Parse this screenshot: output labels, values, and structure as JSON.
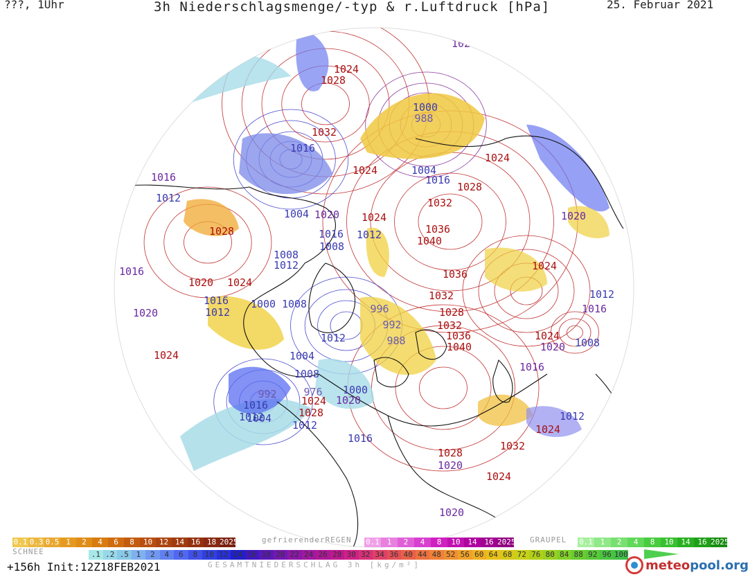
{
  "header": {
    "left": "???, 1Uhr",
    "title": "3h Niederschlagsmenge/-typ & r.Luftdruck [hPa]",
    "date": "25. Februar 2021"
  },
  "map": {
    "pressure_labels": [
      {
        "text": "1020",
        "color": "#3a3ab0"
      },
      {
        "text": "1024",
        "color": "#aa1010"
      },
      {
        "text": "1028",
        "color": "#aa1010"
      },
      {
        "text": "1020",
        "color": "#6a2aa0"
      },
      {
        "text": "1000",
        "color": "#3a3ab0"
      },
      {
        "text": "988",
        "color": "#6a5ab0"
      },
      {
        "text": "1032",
        "color": "#aa1010"
      },
      {
        "text": "1016",
        "color": "#3a3ab0"
      },
      {
        "text": "1024",
        "color": "#aa1010"
      },
      {
        "text": "1004",
        "color": "#3a3ab0"
      },
      {
        "text": "1016",
        "color": "#3a3ab0"
      },
      {
        "text": "1024",
        "color": "#aa1010"
      },
      {
        "text": "1028",
        "color": "#aa1010"
      },
      {
        "text": "1032",
        "color": "#aa1010"
      },
      {
        "text": "1016",
        "color": "#6a2aa0"
      },
      {
        "text": "1012",
        "color": "#3a3ab0"
      },
      {
        "text": "1028",
        "color": "#aa1010"
      },
      {
        "text": "1004",
        "color": "#3a3ab0"
      },
      {
        "text": "1020",
        "color": "#6a2aa0"
      },
      {
        "text": "1024",
        "color": "#aa1010"
      },
      {
        "text": "1020",
        "color": "#6a2aa0"
      },
      {
        "text": "1016",
        "color": "#3a3ab0"
      },
      {
        "text": "1012",
        "color": "#3a3ab0"
      },
      {
        "text": "1036",
        "color": "#aa1010"
      },
      {
        "text": "1008",
        "color": "#3a3ab0"
      },
      {
        "text": "1040",
        "color": "#aa1010"
      },
      {
        "text": "1008",
        "color": "#3a3ab0"
      },
      {
        "text": "1012",
        "color": "#3a3ab0"
      },
      {
        "text": "1016",
        "color": "#6a2aa0"
      },
      {
        "text": "1024",
        "color": "#aa1010"
      },
      {
        "text": "1020",
        "color": "#aa1010"
      },
      {
        "text": "1024",
        "color": "#aa1010"
      },
      {
        "text": "1036",
        "color": "#aa1010"
      },
      {
        "text": "1016",
        "color": "#3a3ab0"
      },
      {
        "text": "1000",
        "color": "#3a3ab0"
      },
      {
        "text": "1008",
        "color": "#3a3ab0"
      },
      {
        "text": "1012",
        "color": "#3a3ab0"
      },
      {
        "text": "1032",
        "color": "#aa1010"
      },
      {
        "text": "1012",
        "color": "#3a3ab0"
      },
      {
        "text": "996",
        "color": "#6a5ab0"
      },
      {
        "text": "1028",
        "color": "#aa1010"
      },
      {
        "text": "1020",
        "color": "#6a2aa0"
      },
      {
        "text": "1016",
        "color": "#6a2aa0"
      },
      {
        "text": "992",
        "color": "#6a5ab0"
      },
      {
        "text": "1032",
        "color": "#aa1010"
      },
      {
        "text": "1012",
        "color": "#3a3ab0"
      },
      {
        "text": "988",
        "color": "#6a5ab0"
      },
      {
        "text": "1036",
        "color": "#aa1010"
      },
      {
        "text": "1024",
        "color": "#aa1010"
      },
      {
        "text": "1024",
        "color": "#aa1010"
      },
      {
        "text": "1004",
        "color": "#3a3ab0"
      },
      {
        "text": "1040",
        "color": "#aa1010"
      },
      {
        "text": "1020",
        "color": "#6a2aa0"
      },
      {
        "text": "1008",
        "color": "#3a3ab0"
      },
      {
        "text": "1008",
        "color": "#3a3ab0"
      },
      {
        "text": "1016",
        "color": "#6a2aa0"
      },
      {
        "text": "992",
        "color": "#6a5ab0"
      },
      {
        "text": "1000",
        "color": "#3a3ab0"
      },
      {
        "text": "1016",
        "color": "#3a3ab0"
      },
      {
        "text": "976",
        "color": "#6a5ab0"
      },
      {
        "text": "1012",
        "color": "#3a3ab0"
      },
      {
        "text": "1020",
        "color": "#6a2aa0"
      },
      {
        "text": "1004",
        "color": "#3a3ab0"
      },
      {
        "text": "1024",
        "color": "#aa1010"
      },
      {
        "text": "1028",
        "color": "#aa1010"
      },
      {
        "text": "1012",
        "color": "#3a3ab0"
      },
      {
        "text": "1012",
        "color": "#3a3ab0"
      },
      {
        "text": "1024",
        "color": "#aa1010"
      },
      {
        "text": "1016",
        "color": "#3a3ab0"
      },
      {
        "text": "1032",
        "color": "#aa1010"
      },
      {
        "text": "1028",
        "color": "#aa1010"
      },
      {
        "text": "1020",
        "color": "#6a2aa0"
      },
      {
        "text": "1024",
        "color": "#aa1010"
      },
      {
        "text": "1020",
        "color": "#6a2aa0"
      }
    ]
  },
  "legend": {
    "snow_caption": "SCHNEE",
    "snow": [
      {
        "label": "0.1",
        "color": "#f0c850"
      },
      {
        "label": "0.3",
        "color": "#ecb840"
      },
      {
        "label": "0.5",
        "color": "#e8a830"
      },
      {
        "label": "1",
        "color": "#e49a20"
      },
      {
        "label": "2",
        "color": "#e08c18"
      },
      {
        "label": "4",
        "color": "#d87c10"
      },
      {
        "label": "6",
        "color": "#d06c10"
      },
      {
        "label": "8",
        "color": "#c45c10"
      },
      {
        "label": "10",
        "color": "#b84e10"
      },
      {
        "label": "12",
        "color": "#ac4410"
      },
      {
        "label": "14",
        "color": "#a03a10"
      },
      {
        "label": "16",
        "color": "#943010"
      },
      {
        "label": "18",
        "color": "#882810"
      },
      {
        "label": "2025+",
        "color": "#7a2010"
      }
    ],
    "freezing_caption": "gefrierenderREGEN",
    "freezing": [
      {
        "label": "0.1",
        "color": "#f0a0e8"
      },
      {
        "label": "1",
        "color": "#e880e0"
      },
      {
        "label": "2",
        "color": "#e060d8"
      },
      {
        "label": "4",
        "color": "#d840d0"
      },
      {
        "label": "8",
        "color": "#d020c0"
      },
      {
        "label": "10",
        "color": "#c010b0"
      },
      {
        "label": "14",
        "color": "#b000a0"
      },
      {
        "label": "16",
        "color": "#a00090"
      },
      {
        "label": "2025+",
        "color": "#900080"
      }
    ],
    "graupel_caption": "GRAUPEL",
    "graupel": [
      {
        "label": "0.1",
        "color": "#a8f0a0"
      },
      {
        "label": "1",
        "color": "#90e888"
      },
      {
        "label": "2",
        "color": "#78e070"
      },
      {
        "label": "4",
        "color": "#60d858"
      },
      {
        "label": "8",
        "color": "#48cc40"
      },
      {
        "label": "10",
        "color": "#38c030"
      },
      {
        "label": "14",
        "color": "#28b020"
      },
      {
        "label": "16",
        "color": "#20a018"
      },
      {
        "label": "2025+",
        "color": "#188c10"
      }
    ],
    "total": [
      {
        "label": ".1",
        "color": "#a8e8e8"
      },
      {
        "label": ".2",
        "color": "#98d8e8"
      },
      {
        "label": ".5",
        "color": "#88c8e8"
      },
      {
        "label": "1",
        "color": "#80b0f0"
      },
      {
        "label": "2",
        "color": "#7098f0"
      },
      {
        "label": "4",
        "color": "#6080f0"
      },
      {
        "label": "6",
        "color": "#5068f0"
      },
      {
        "label": "8",
        "color": "#4050e8"
      },
      {
        "label": "10",
        "color": "#3040e0"
      },
      {
        "label": "12",
        "color": "#2830d8"
      },
      {
        "label": "14",
        "color": "#2020c8"
      },
      {
        "label": "16",
        "color": "#4018c0"
      },
      {
        "label": "18",
        "color": "#5a18b8"
      },
      {
        "label": "20",
        "color": "#7418b0"
      },
      {
        "label": "22",
        "color": "#8c18a8"
      },
      {
        "label": "24",
        "color": "#a018a0"
      },
      {
        "label": "26",
        "color": "#b01898"
      },
      {
        "label": "28",
        "color": "#c01890"
      },
      {
        "label": "30",
        "color": "#d02088"
      },
      {
        "label": "32",
        "color": "#d83078"
      },
      {
        "label": "34",
        "color": "#e04068"
      },
      {
        "label": "36",
        "color": "#e45058"
      },
      {
        "label": "40",
        "color": "#e86048"
      },
      {
        "label": "44",
        "color": "#ec7040"
      },
      {
        "label": "48",
        "color": "#f08038"
      },
      {
        "label": "52",
        "color": "#f09030"
      },
      {
        "label": "56",
        "color": "#f0a028"
      },
      {
        "label": "60",
        "color": "#f0b020"
      },
      {
        "label": "64",
        "color": "#e8c018"
      },
      {
        "label": "68",
        "color": "#d8c818"
      },
      {
        "label": "72",
        "color": "#c8d018"
      },
      {
        "label": "76",
        "color": "#b0d018"
      },
      {
        "label": "80",
        "color": "#98d020"
      },
      {
        "label": "84",
        "color": "#80d028"
      },
      {
        "label": "88",
        "color": "#68cc30"
      },
      {
        "label": "92",
        "color": "#58c838"
      },
      {
        "label": "96",
        "color": "#48c440"
      },
      {
        "label": "100",
        "color": "#40c048"
      }
    ],
    "total_caption": "GESAMTNIEDERSCHLAG 3h [kg/m²]"
  },
  "footer": {
    "run": "+156h Init:12Z18FEB2021",
    "logo_a": "meteo",
    "logo_b": "pool.org"
  }
}
